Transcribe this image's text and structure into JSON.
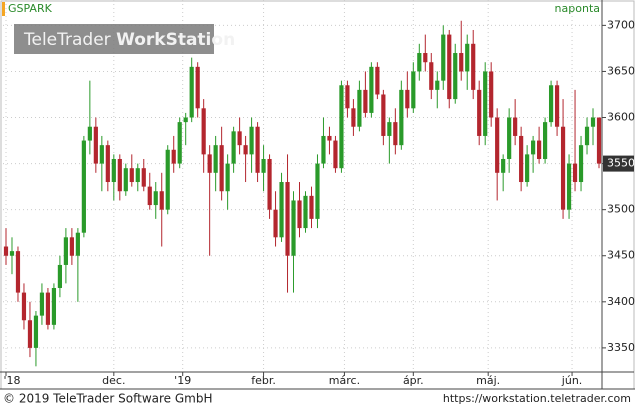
{
  "chart_data": {
    "type": "candlestick",
    "title": "GSPARK",
    "period": "naponta",
    "watermark": {
      "brand": "TeleTrader",
      "product": "WorkStation"
    },
    "footer": {
      "copyright": "© 2019 TeleTrader Software GmbH",
      "url": "https://workstation.teletrader.com"
    },
    "last_price": 3550,
    "up_color": "#2a9a2a",
    "down_color": "#b3262e",
    "ylim": [
      3326,
      3708
    ],
    "yticks": [
      3350,
      3400,
      3450,
      3500,
      3550,
      3600,
      3650,
      3700
    ],
    "xlim": [
      -0.5,
      99.5
    ],
    "xticks": [
      {
        "value": 0,
        "label": "'18"
      },
      {
        "value": 18,
        "label": "dec."
      },
      {
        "value": 29.5,
        "label": "'19"
      },
      {
        "value": 43,
        "label": "febr."
      },
      {
        "value": 56.5,
        "label": "márc."
      },
      {
        "value": 68,
        "label": "ápr."
      },
      {
        "value": 80.5,
        "label": "máj."
      },
      {
        "value": 94.5,
        "label": "jún."
      }
    ],
    "grid": true,
    "open": [
      3460,
      3450,
      3455,
      3410,
      3380,
      3350,
      3385,
      3410,
      3375,
      3415,
      3440,
      3470,
      3450,
      3475,
      3575,
      3590,
      3550,
      3570,
      3530,
      3555,
      3520,
      3545,
      3530,
      3545,
      3525,
      3505,
      3520,
      3500,
      3565,
      3550,
      3595,
      3600,
      3655,
      3610,
      3560,
      3540,
      3570,
      3520,
      3550,
      3585,
      3570,
      3560,
      3590,
      3540,
      3555,
      3500,
      3470,
      3530,
      3450,
      3510,
      3480,
      3515,
      3490,
      3550,
      3580,
      3575,
      3545,
      3635,
      3610,
      3590,
      3630,
      3605,
      3655,
      3625,
      3580,
      3595,
      3570,
      3630,
      3610,
      3650,
      3670,
      3660,
      3630,
      3640,
      3690,
      3620,
      3670,
      3650,
      3680,
      3630,
      3580,
      3650,
      3600,
      3540,
      3555,
      3600,
      3580,
      3530,
      3560,
      3575,
      3555,
      3595,
      3635,
      3590,
      3500,
      3550,
      3530,
      3570,
      3590,
      3600
    ],
    "high": [
      3480,
      3470,
      3460,
      3420,
      3400,
      3390,
      3420,
      3415,
      3420,
      3450,
      3480,
      3480,
      3480,
      3580,
      3640,
      3600,
      3580,
      3575,
      3560,
      3560,
      3550,
      3560,
      3550,
      3555,
      3540,
      3530,
      3540,
      3570,
      3580,
      3600,
      3605,
      3665,
      3660,
      3620,
      3570,
      3580,
      3590,
      3560,
      3590,
      3600,
      3580,
      3600,
      3595,
      3570,
      3560,
      3520,
      3540,
      3560,
      3520,
      3530,
      3520,
      3525,
      3560,
      3600,
      3590,
      3580,
      3640,
      3640,
      3620,
      3640,
      3650,
      3660,
      3660,
      3630,
      3600,
      3610,
      3640,
      3650,
      3660,
      3680,
      3690,
      3670,
      3650,
      3700,
      3695,
      3680,
      3705,
      3690,
      3695,
      3640,
      3660,
      3660,
      3610,
      3560,
      3610,
      3620,
      3590,
      3570,
      3580,
      3590,
      3600,
      3640,
      3640,
      3620,
      3560,
      3630,
      3580,
      3600,
      3610,
      3600
    ],
    "low": [
      3440,
      3430,
      3400,
      3370,
      3340,
      3330,
      3375,
      3370,
      3370,
      3405,
      3420,
      3440,
      3400,
      3470,
      3560,
      3540,
      3520,
      3520,
      3510,
      3510,
      3515,
      3525,
      3520,
      3520,
      3500,
      3490,
      3460,
      3495,
      3540,
      3545,
      3570,
      3595,
      3600,
      3540,
      3450,
      3520,
      3510,
      3500,
      3540,
      3560,
      3530,
      3540,
      3530,
      3520,
      3490,
      3460,
      3465,
      3410,
      3410,
      3470,
      3475,
      3480,
      3480,
      3545,
      3560,
      3540,
      3540,
      3600,
      3580,
      3585,
      3600,
      3600,
      3620,
      3570,
      3550,
      3560,
      3565,
      3600,
      3605,
      3640,
      3650,
      3620,
      3610,
      3630,
      3610,
      3615,
      3640,
      3630,
      3620,
      3570,
      3570,
      3590,
      3510,
      3520,
      3540,
      3570,
      3520,
      3525,
      3540,
      3550,
      3550,
      3590,
      3580,
      3490,
      3490,
      3520,
      3520,
      3560,
      3570,
      3545
    ],
    "close": [
      3450,
      3455,
      3410,
      3380,
      3350,
      3385,
      3410,
      3375,
      3415,
      3440,
      3470,
      3450,
      3475,
      3575,
      3590,
      3550,
      3570,
      3530,
      3555,
      3520,
      3545,
      3530,
      3545,
      3525,
      3505,
      3520,
      3500,
      3565,
      3550,
      3595,
      3600,
      3655,
      3610,
      3560,
      3540,
      3570,
      3520,
      3550,
      3585,
      3570,
      3560,
      3590,
      3540,
      3555,
      3500,
      3470,
      3530,
      3450,
      3510,
      3480,
      3515,
      3490,
      3550,
      3580,
      3575,
      3545,
      3635,
      3610,
      3590,
      3630,
      3605,
      3655,
      3625,
      3580,
      3595,
      3570,
      3630,
      3610,
      3650,
      3670,
      3660,
      3630,
      3640,
      3690,
      3620,
      3670,
      3650,
      3680,
      3630,
      3580,
      3650,
      3600,
      3540,
      3555,
      3600,
      3580,
      3530,
      3560,
      3575,
      3555,
      3595,
      3635,
      3590,
      3500,
      3550,
      3530,
      3570,
      3590,
      3600,
      3550
    ]
  }
}
